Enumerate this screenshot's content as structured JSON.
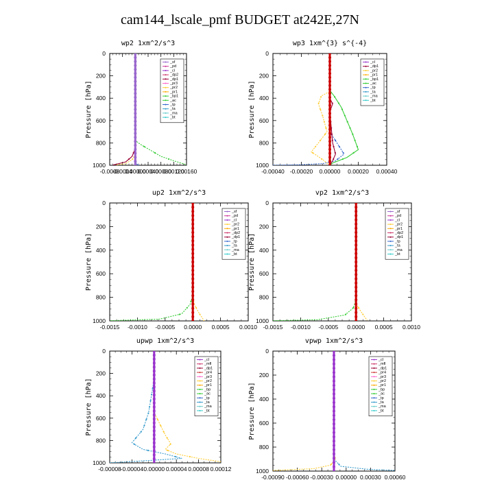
{
  "title": "cam144_lscale_pmf  BUDGET at242E,27N",
  "colors": {
    "sf": "#9966cc",
    "pd": "#cc3399",
    "cl": "#9933cc",
    "dp2": "#cc3366",
    "dp1": "#990033",
    "pr3": "#ff66cc",
    "pr2": "#ffcc33",
    "pr1": "#ffaa00",
    "bp1": "#33cc33",
    "ac": "#33cc33",
    "tp": "#3366cc",
    "ta": "#3399cc",
    "ma": "#66cccc",
    "bt": "#33cccc",
    "mfl": "#cc3366",
    "pr4": "#cc3333",
    "bp": "#33cc33",
    "main": "#cc0000"
  },
  "chart_data": [
    {
      "type": "line",
      "name": "wp2",
      "title": "wp2   1xm^2/s^3",
      "ylabel": "Pressure [hPa]",
      "xlim": [
        -0.0008,
        0.0016
      ],
      "x_ticks": [
        "-0.0008",
        "-0.0004",
        "0.00000",
        "0.00040",
        "0.00080",
        "0.00120",
        "0.00160"
      ],
      "ylim": [
        0,
        1000
      ],
      "y_ticks": [
        "0",
        "200",
        "400",
        "600",
        "800",
        "1000"
      ],
      "legend": [
        "_sf",
        "_pd",
        "_cl",
        "_dp2",
        "_dp1",
        "_pr3",
        "_pr2",
        "_pr1",
        "_bp1",
        "_ac",
        "_tp",
        "_ta",
        "_ma",
        "_bt"
      ],
      "series": [
        {
          "name": "_bp1",
          "color_key": "bp1",
          "dashed": true,
          "points": [
            [
              0,
              0
            ],
            [
              0,
              780
            ],
            [
              0.0002,
              820
            ],
            [
              0.0005,
              870
            ],
            [
              0.0008,
              920
            ],
            [
              0.0012,
              960
            ],
            [
              0.0016,
              995
            ]
          ]
        },
        {
          "name": "_pr2",
          "color_key": "pr2",
          "dashed": true,
          "points": [
            [
              0,
              0
            ],
            [
              0,
              900
            ],
            [
              -0.0001,
              950
            ],
            [
              -0.0003,
              985
            ],
            [
              -0.0006,
              998
            ]
          ]
        },
        {
          "name": "_dp1",
          "color_key": "dp1",
          "dashed": false,
          "points": [
            [
              0,
              0
            ],
            [
              0,
              850
            ],
            [
              -0.0001,
              920
            ],
            [
              -0.0003,
              970
            ],
            [
              -0.0007,
              998
            ]
          ]
        },
        {
          "name": "_tp",
          "color_key": "tp",
          "dashed": true,
          "points": [
            [
              0,
              0
            ],
            [
              0,
              950
            ],
            [
              5e-05,
              990
            ],
            [
              0.0001,
              1000
            ]
          ]
        },
        {
          "name": "_sf",
          "color_key": "sf",
          "dashed": false,
          "points": [
            [
              0,
              0
            ],
            [
              0,
              1000
            ]
          ]
        }
      ]
    },
    {
      "type": "line",
      "name": "wp3",
      "title": "wp3   1xm^{3} s^{-4}",
      "ylabel": "Pressure [hPa]",
      "xlim": [
        -0.0004,
        0.0004
      ],
      "x_ticks": [
        "-0.00040",
        "-0.00020",
        "0.00000",
        "0.00020",
        "0.00040"
      ],
      "ylim": [
        0,
        1000
      ],
      "y_ticks": [
        "0",
        "200",
        "400",
        "600",
        "800",
        "1000"
      ],
      "legend": [
        "_cl",
        "_dp1",
        "_pr2",
        "_pr1",
        "_bp1",
        "_ac",
        "_tp",
        "_ta",
        "_ma",
        "_bt"
      ],
      "series": [
        {
          "name": "_ac",
          "color_key": "ac",
          "dashed": false,
          "points": [
            [
              0,
              0
            ],
            [
              0,
              330
            ],
            [
              3e-05,
              380
            ],
            [
              8e-05,
              480
            ],
            [
              0.00012,
              600
            ],
            [
              0.00016,
              720
            ],
            [
              0.0002,
              860
            ],
            [
              0.00012,
              930
            ],
            [
              2e-05,
              980
            ],
            [
              0,
              1000
            ]
          ]
        },
        {
          "name": "_pr2",
          "color_key": "pr2",
          "dashed": true,
          "points": [
            [
              0,
              0
            ],
            [
              0,
              340
            ],
            [
              -6e-05,
              380
            ],
            [
              -8e-05,
              450
            ],
            [
              -5e-05,
              560
            ],
            [
              -2e-05,
              700
            ],
            [
              -8e-05,
              800
            ],
            [
              -0.00013,
              880
            ],
            [
              -5e-05,
              950
            ],
            [
              0,
              1000
            ]
          ]
        },
        {
          "name": "_tp",
          "color_key": "tp",
          "dashed": true,
          "points": [
            [
              0,
              0
            ],
            [
              0,
              700
            ],
            [
              5e-05,
              800
            ],
            [
              0.0001,
              900
            ],
            [
              4e-05,
              960
            ],
            [
              -5e-05,
              985
            ],
            [
              -0.0002,
              995
            ],
            [
              -0.0004,
              1000
            ]
          ]
        },
        {
          "name": "_dp1",
          "color_key": "dp1",
          "dashed": false,
          "points": [
            [
              0,
              0
            ],
            [
              0,
              400
            ],
            [
              2e-05,
              450
            ],
            [
              0,
              520
            ],
            [
              2e-05,
              800
            ],
            [
              4e-05,
              900
            ],
            [
              2e-05,
              960
            ],
            [
              0,
              1000
            ]
          ]
        },
        {
          "name": "_cl",
          "color_key": "main",
          "dashed": false,
          "points": [
            [
              0,
              0
            ],
            [
              0,
              1000
            ]
          ]
        }
      ]
    },
    {
      "type": "line",
      "name": "up2",
      "title": "up2   1xm^2/s^3",
      "ylabel": "Pressure [hPa]",
      "xlim": [
        -0.0015,
        0.001
      ],
      "x_ticks": [
        "-0.0015",
        "-0.0010",
        "-0.0005",
        "0.0000",
        "0.0005",
        "0.0010"
      ],
      "ylim": [
        0,
        1000
      ],
      "y_ticks": [
        "0",
        "200",
        "400",
        "600",
        "800",
        "1000"
      ],
      "legend": [
        "_sf",
        "_pd",
        "_cl",
        "_pr2",
        "_pr1",
        "_dp2",
        "_dp1",
        "_tp",
        "_ta",
        "_ma",
        "_bt"
      ],
      "series": [
        {
          "name": "_dp1",
          "color_key": "bp1",
          "dashed": true,
          "points": [
            [
              0,
              0
            ],
            [
              0,
              780
            ],
            [
              -5e-05,
              860
            ],
            [
              -0.0002,
              940
            ],
            [
              -0.0006,
              985
            ],
            [
              -0.0015,
              998
            ]
          ]
        },
        {
          "name": "_pr2",
          "color_key": "pr2",
          "dashed": true,
          "points": [
            [
              0,
              0
            ],
            [
              0,
              820
            ],
            [
              5e-05,
              880
            ],
            [
              0.00012,
              940
            ],
            [
              0.00018,
              980
            ],
            [
              0.0002,
              1000
            ]
          ]
        },
        {
          "name": "_sf",
          "color_key": "main",
          "dashed": false,
          "points": [
            [
              0,
              0
            ],
            [
              0,
              1000
            ]
          ]
        }
      ]
    },
    {
      "type": "line",
      "name": "vp2",
      "title": "vp2   1xm^2/s^3",
      "ylabel": "Pressure [hPa]",
      "xlim": [
        -0.0015,
        0.001
      ],
      "x_ticks": [
        "-0.0015",
        "-0.0010",
        "-0.0005",
        "0.0000",
        "0.0005",
        "0.0010"
      ],
      "ylim": [
        0,
        1000
      ],
      "y_ticks": [
        "0",
        "200",
        "400",
        "600",
        "800",
        "1000"
      ],
      "legend": [
        "_sf",
        "_pd",
        "_cl",
        "_pr2",
        "_pr1",
        "_dp2",
        "_dp1",
        "_tp",
        "_ta",
        "_ma",
        "_bt"
      ],
      "series": [
        {
          "name": "_dp1",
          "color_key": "bp1",
          "dashed": true,
          "points": [
            [
              0,
              0
            ],
            [
              0,
              820
            ],
            [
              -5e-05,
              890
            ],
            [
              -0.0002,
              950
            ],
            [
              -0.0007,
              990
            ],
            [
              -0.0015,
              998
            ]
          ]
        },
        {
          "name": "_pr2",
          "color_key": "pr2",
          "dashed": true,
          "points": [
            [
              0,
              0
            ],
            [
              0,
              850
            ],
            [
              6e-05,
              900
            ],
            [
              0.00014,
              955
            ],
            [
              0.0002,
              995
            ]
          ]
        },
        {
          "name": "_sf",
          "color_key": "main",
          "dashed": false,
          "points": [
            [
              0,
              0
            ],
            [
              0,
              1000
            ]
          ]
        }
      ]
    },
    {
      "type": "line",
      "name": "upwp",
      "title": "upwp   1xm^2/s^3",
      "ylabel": "Pressure [hPa]",
      "xlim": [
        -8e-05,
        0.00012
      ],
      "x_ticks": [
        "-0.00008",
        "-0.00004",
        "0.00000",
        "0.00004",
        "0.00008",
        "0.00012"
      ],
      "ylim": [
        0,
        1000
      ],
      "y_ticks": [
        "0",
        "200",
        "400",
        "600",
        "800",
        "1000"
      ],
      "legend": [
        "_cl",
        "_mfl",
        "_dp1",
        "_pr4",
        "_pr3",
        "_pr2",
        "_pr1",
        "_bp",
        "_ac",
        "_tp",
        "_ta",
        "_ma",
        "_bt"
      ],
      "series": [
        {
          "name": "_ta",
          "color_key": "ta",
          "dashed": true,
          "points": [
            [
              0,
              0
            ],
            [
              0,
              250
            ],
            [
              -5e-06,
              400
            ],
            [
              -1e-05,
              550
            ],
            [
              -2e-05,
              700
            ],
            [
              -4e-05,
              820
            ],
            [
              -2e-05,
              880
            ],
            [
              2e-05,
              920
            ],
            [
              5e-05,
              960
            ],
            [
              -3e-05,
              985
            ],
            [
              -8e-05,
              1000
            ]
          ]
        },
        {
          "name": "_pr2",
          "color_key": "pr2",
          "dashed": true,
          "points": [
            [
              0,
              0
            ],
            [
              0,
              550
            ],
            [
              1e-05,
              650
            ],
            [
              2e-05,
              750
            ],
            [
              3e-05,
              830
            ],
            [
              2e-05,
              880
            ],
            [
              4e-05,
              920
            ],
            [
              8e-05,
              960
            ],
            [
              0.00012,
              990
            ]
          ]
        },
        {
          "name": "_cl",
          "color_key": "cl",
          "dashed": false,
          "points": [
            [
              0,
              0
            ],
            [
              0,
              1000
            ]
          ]
        }
      ]
    },
    {
      "type": "line",
      "name": "vpwp",
      "title": "vpwp   1xm^2/s^3",
      "ylabel": "Pressure [hPa]",
      "xlim": [
        -0.0009,
        0.0009
      ],
      "x_ticks": [
        "-0.00090",
        "-0.00060",
        "-0.00030",
        "0.00000",
        "0.00030",
        "0.00060"
      ],
      "ylim": [
        0,
        1000
      ],
      "y_ticks": [
        "0",
        "200",
        "400",
        "600",
        "800",
        "1000"
      ],
      "legend": [
        "_cl",
        "_mfl",
        "_dp1",
        "_pr4",
        "_pr3",
        "_pr2",
        "_pr1",
        "_bp",
        "_ac",
        "_tp",
        "_ta",
        "_ma",
        "_bt"
      ],
      "series": [
        {
          "name": "_pr2",
          "color_key": "pr2",
          "dashed": true,
          "points": [
            [
              0,
              0
            ],
            [
              0,
              850
            ],
            [
              2e-05,
              900
            ],
            [
              -5e-05,
              950
            ],
            [
              -0.0003,
              980
            ],
            [
              -0.0009,
              995
            ]
          ]
        },
        {
          "name": "_ta",
          "color_key": "ta",
          "dashed": true,
          "points": [
            [
              0,
              0
            ],
            [
              0,
              900
            ],
            [
              0.0001,
              960
            ],
            [
              0.0005,
              985
            ],
            [
              0.0009,
              995
            ]
          ]
        },
        {
          "name": "_cl",
          "color_key": "cl",
          "dashed": false,
          "points": [
            [
              0,
              0
            ],
            [
              0,
              1000
            ]
          ]
        }
      ]
    }
  ]
}
